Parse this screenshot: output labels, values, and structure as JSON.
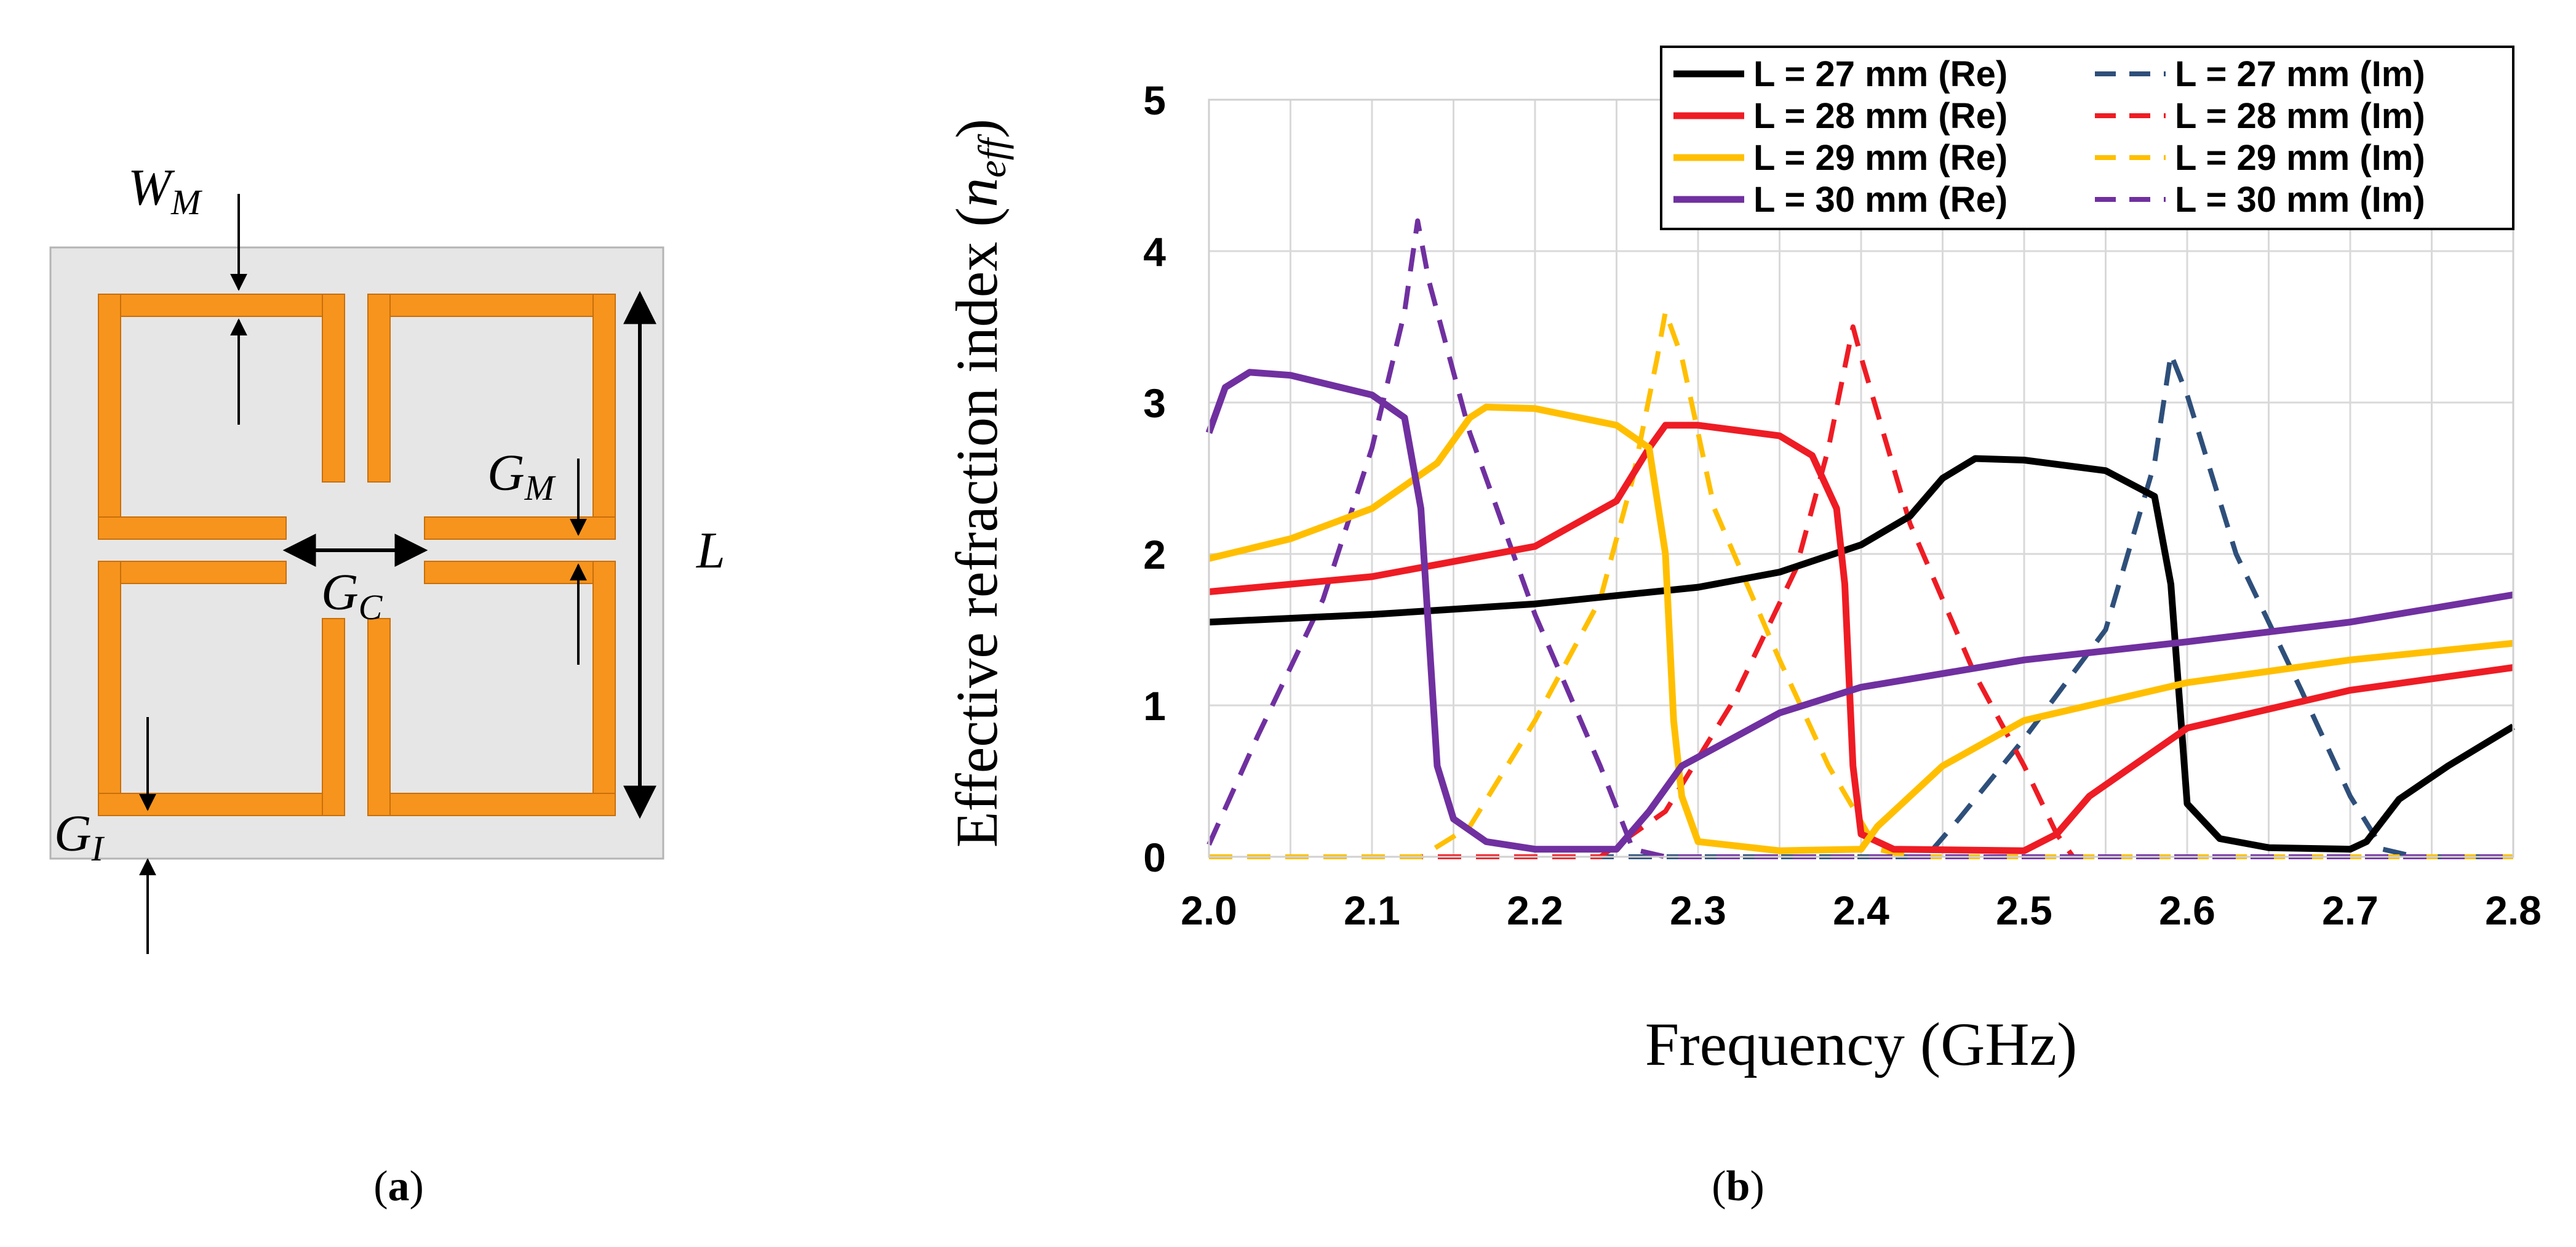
{
  "panel_a": {
    "caption_letter": "a",
    "labels": {
      "W": "W",
      "W_sub": "M",
      "G_M": "G",
      "G_M_sub": "M",
      "G_C": "G",
      "G_C_sub": "C",
      "G_I": "G",
      "G_I_sub": "I",
      "L": "L"
    },
    "colors": {
      "substrate": "#e6e6e6",
      "metal": "#f7941d",
      "metal_edge": "#c86f0a"
    }
  },
  "panel_b": {
    "caption_letter": "b",
    "ylabel_text": "Effective refraction index (",
    "ylabel_symbol": "n",
    "ylabel_sub": "eff",
    "ylabel_close": ")"
  },
  "chart_data": {
    "type": "line",
    "xlabel": "Frequency (GHz)",
    "ylabel": "Effective refraction index (n_eff)",
    "xlim": [
      2.0,
      2.8
    ],
    "ylim": [
      0,
      5
    ],
    "xticks": [
      "2.0",
      "2.1",
      "2.2",
      "2.3",
      "2.4",
      "2.5",
      "2.6",
      "2.7",
      "2.8"
    ],
    "yticks": [
      "0",
      "1",
      "2",
      "3",
      "4",
      "5"
    ],
    "grid": true,
    "legend_position": "top-right",
    "series": [
      {
        "name": "L = 27 mm (Re)",
        "color": "#000000",
        "style": "solid",
        "points": [
          [
            2.0,
            1.55
          ],
          [
            2.1,
            1.6
          ],
          [
            2.2,
            1.67
          ],
          [
            2.3,
            1.78
          ],
          [
            2.35,
            1.88
          ],
          [
            2.4,
            2.06
          ],
          [
            2.43,
            2.25
          ],
          [
            2.45,
            2.5
          ],
          [
            2.47,
            2.63
          ],
          [
            2.5,
            2.62
          ],
          [
            2.55,
            2.55
          ],
          [
            2.58,
            2.38
          ],
          [
            2.59,
            1.8
          ],
          [
            2.6,
            0.35
          ],
          [
            2.62,
            0.12
          ],
          [
            2.65,
            0.06
          ],
          [
            2.7,
            0.05
          ],
          [
            2.71,
            0.1
          ],
          [
            2.73,
            0.38
          ],
          [
            2.76,
            0.6
          ],
          [
            2.8,
            0.86
          ]
        ]
      },
      {
        "name": "L = 27 mm (Im)",
        "color": "#2e4f7a",
        "style": "dashed",
        "points": [
          [
            2.0,
            0.0
          ],
          [
            2.44,
            0.0
          ],
          [
            2.46,
            0.25
          ],
          [
            2.5,
            0.78
          ],
          [
            2.55,
            1.5
          ],
          [
            2.58,
            2.6
          ],
          [
            2.59,
            3.32
          ],
          [
            2.6,
            3.05
          ],
          [
            2.63,
            2.0
          ],
          [
            2.67,
            1.1
          ],
          [
            2.7,
            0.4
          ],
          [
            2.72,
            0.05
          ],
          [
            2.74,
            0.0
          ],
          [
            2.8,
            0.0
          ]
        ]
      },
      {
        "name": "L = 28 mm (Re)",
        "color": "#ee1c24",
        "style": "solid",
        "points": [
          [
            2.0,
            1.75
          ],
          [
            2.1,
            1.85
          ],
          [
            2.2,
            2.05
          ],
          [
            2.25,
            2.35
          ],
          [
            2.27,
            2.7
          ],
          [
            2.28,
            2.85
          ],
          [
            2.3,
            2.85
          ],
          [
            2.35,
            2.78
          ],
          [
            2.37,
            2.65
          ],
          [
            2.385,
            2.3
          ],
          [
            2.39,
            1.8
          ],
          [
            2.395,
            0.6
          ],
          [
            2.4,
            0.15
          ],
          [
            2.42,
            0.05
          ],
          [
            2.5,
            0.04
          ],
          [
            2.52,
            0.15
          ],
          [
            2.54,
            0.4
          ],
          [
            2.6,
            0.85
          ],
          [
            2.7,
            1.1
          ],
          [
            2.8,
            1.25
          ]
        ]
      },
      {
        "name": "L = 28 mm (Im)",
        "color": "#ee1c24",
        "style": "dashed",
        "points": [
          [
            2.0,
            0.0
          ],
          [
            2.24,
            0.0
          ],
          [
            2.28,
            0.3
          ],
          [
            2.32,
            1.0
          ],
          [
            2.36,
            1.9
          ],
          [
            2.38,
            2.7
          ],
          [
            2.395,
            3.5
          ],
          [
            2.4,
            3.3
          ],
          [
            2.43,
            2.2
          ],
          [
            2.47,
            1.2
          ],
          [
            2.5,
            0.6
          ],
          [
            2.52,
            0.15
          ],
          [
            2.53,
            0.0
          ],
          [
            2.8,
            0.0
          ]
        ]
      },
      {
        "name": "L = 29 mm (Re)",
        "color": "#ffbf00",
        "style": "solid",
        "points": [
          [
            2.0,
            1.97
          ],
          [
            2.05,
            2.1
          ],
          [
            2.1,
            2.3
          ],
          [
            2.14,
            2.6
          ],
          [
            2.16,
            2.9
          ],
          [
            2.17,
            2.97
          ],
          [
            2.2,
            2.96
          ],
          [
            2.25,
            2.85
          ],
          [
            2.27,
            2.7
          ],
          [
            2.28,
            2.0
          ],
          [
            2.285,
            0.9
          ],
          [
            2.29,
            0.4
          ],
          [
            2.3,
            0.1
          ],
          [
            2.35,
            0.04
          ],
          [
            2.4,
            0.05
          ],
          [
            2.41,
            0.2
          ],
          [
            2.45,
            0.6
          ],
          [
            2.5,
            0.9
          ],
          [
            2.6,
            1.15
          ],
          [
            2.7,
            1.3
          ],
          [
            2.8,
            1.41
          ]
        ]
      },
      {
        "name": "L = 29 mm (Im)",
        "color": "#ffbf00",
        "style": "dashed",
        "points": [
          [
            2.0,
            0.0
          ],
          [
            2.13,
            0.0
          ],
          [
            2.16,
            0.2
          ],
          [
            2.2,
            0.9
          ],
          [
            2.24,
            1.7
          ],
          [
            2.26,
            2.5
          ],
          [
            2.275,
            3.3
          ],
          [
            2.28,
            3.6
          ],
          [
            2.29,
            3.3
          ],
          [
            2.31,
            2.3
          ],
          [
            2.35,
            1.3
          ],
          [
            2.38,
            0.6
          ],
          [
            2.41,
            0.05
          ],
          [
            2.43,
            0.0
          ],
          [
            2.8,
            0.0
          ]
        ]
      },
      {
        "name": "L = 30 mm (Re)",
        "color": "#7030a0",
        "style": "solid",
        "points": [
          [
            2.0,
            2.8
          ],
          [
            2.01,
            3.1
          ],
          [
            2.025,
            3.2
          ],
          [
            2.05,
            3.18
          ],
          [
            2.1,
            3.05
          ],
          [
            2.12,
            2.9
          ],
          [
            2.13,
            2.3
          ],
          [
            2.14,
            0.6
          ],
          [
            2.15,
            0.25
          ],
          [
            2.17,
            0.1
          ],
          [
            2.2,
            0.05
          ],
          [
            2.25,
            0.05
          ],
          [
            2.27,
            0.3
          ],
          [
            2.29,
            0.6
          ],
          [
            2.35,
            0.95
          ],
          [
            2.4,
            1.12
          ],
          [
            2.5,
            1.3
          ],
          [
            2.6,
            1.42
          ],
          [
            2.7,
            1.55
          ],
          [
            2.8,
            1.73
          ]
        ]
      },
      {
        "name": "L = 30 mm (Im)",
        "color": "#7030a0",
        "style": "dashed",
        "points": [
          [
            2.0,
            0.08
          ],
          [
            2.03,
            0.8
          ],
          [
            2.07,
            1.7
          ],
          [
            2.1,
            2.7
          ],
          [
            2.12,
            3.6
          ],
          [
            2.128,
            4.2
          ],
          [
            2.135,
            3.8
          ],
          [
            2.16,
            2.8
          ],
          [
            2.2,
            1.6
          ],
          [
            2.24,
            0.6
          ],
          [
            2.26,
            0.05
          ],
          [
            2.28,
            0.0
          ],
          [
            2.8,
            0.0
          ]
        ]
      }
    ]
  }
}
